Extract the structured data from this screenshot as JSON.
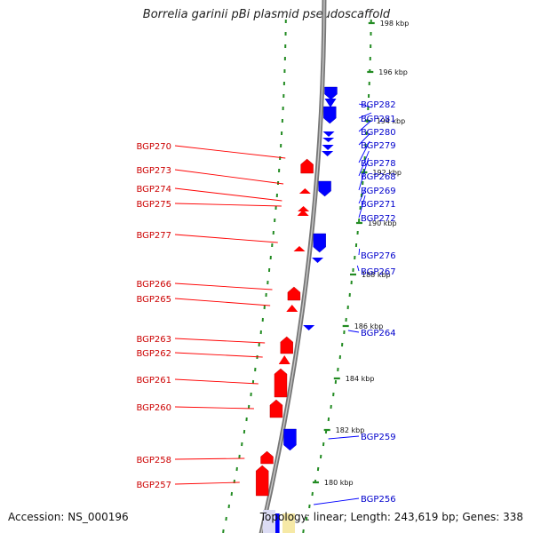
{
  "title": "Borrelia garinii pBi plasmid pseudoscaffold",
  "footer": {
    "accession": "Accession: NS_000196",
    "topology": "Topology: linear; Length: 243,619 bp; Genes: 338"
  },
  "colors": {
    "forward": "#ff0000",
    "reverse": "#0000ff",
    "backbone": "#888888",
    "ticks": "#228b22",
    "label_forward": "#cc0000",
    "label_reverse": "#0000cc"
  },
  "scale_labels": [
    "198 kbp",
    "196 kbp",
    "194 kbp",
    "192 kbp",
    "190 kbp",
    "188 kbp",
    "186 kbp",
    "184 kbp",
    "182 kbp",
    "180 kbp"
  ],
  "genes_left": [
    "BGP270",
    "BGP273",
    "BGP274",
    "BGP275",
    "BGP277",
    "BGP266",
    "BGP265",
    "BGP263",
    "BGP262",
    "BGP261",
    "BGP260",
    "BGP258",
    "BGP257"
  ],
  "genes_right": [
    "BGP282",
    "BGP281",
    "BGP280",
    "BGP279",
    "BGP278",
    "BGP268",
    "BGP269",
    "BGP271",
    "BGP272",
    "BGP276",
    "BGP267",
    "BGP264",
    "BGP259",
    "BGP256"
  ]
}
